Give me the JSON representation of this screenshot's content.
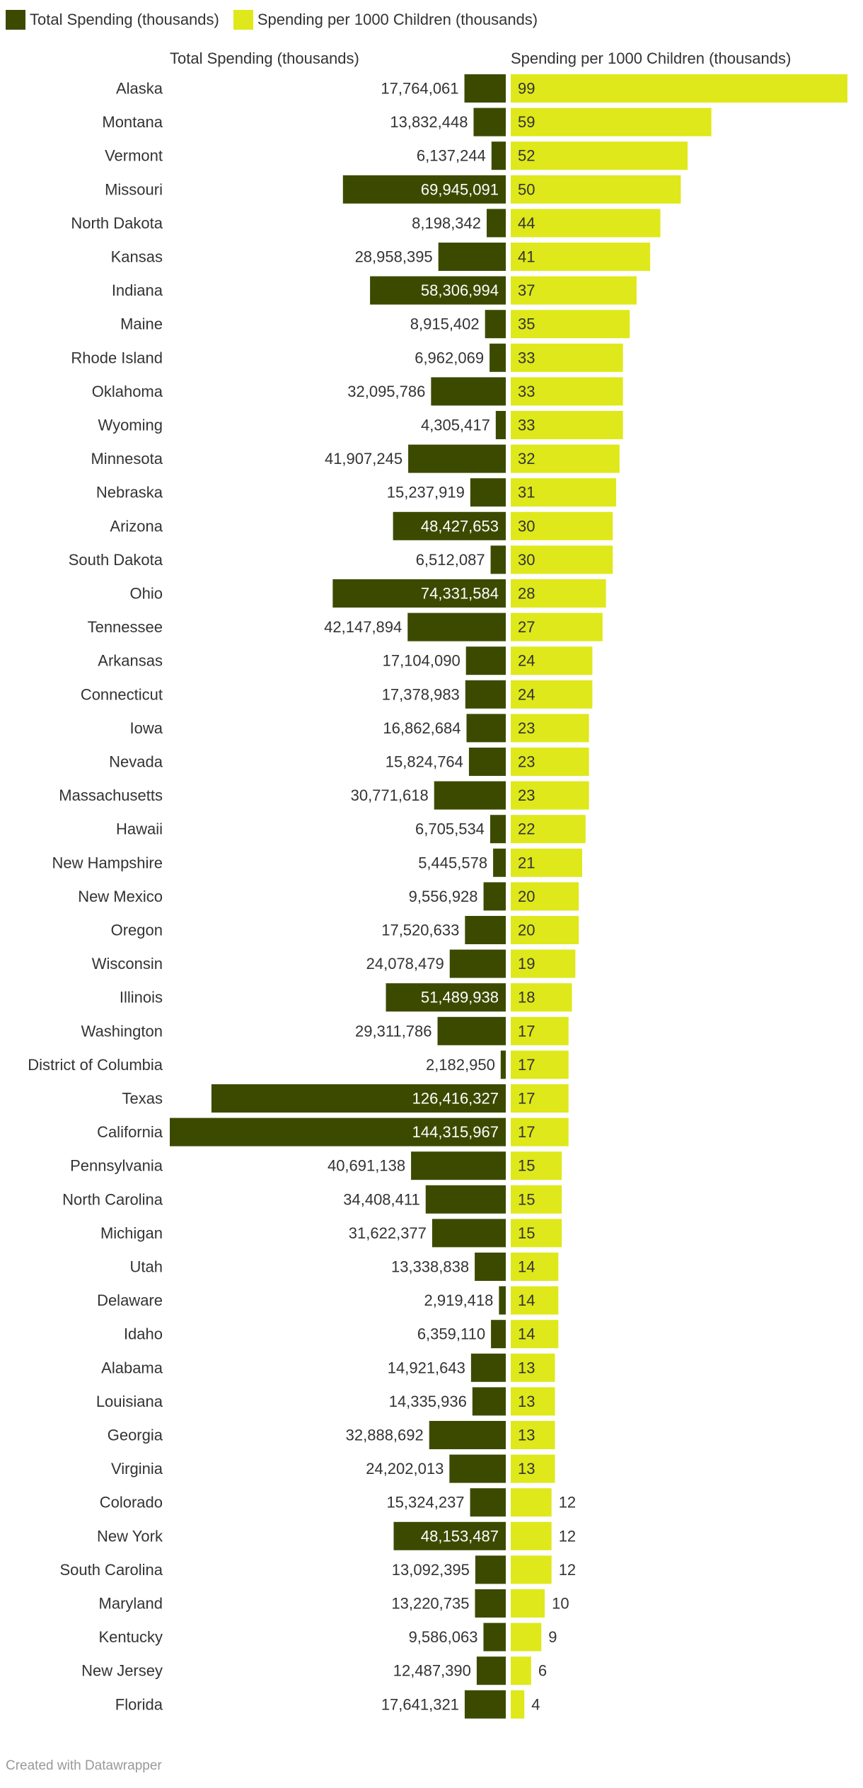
{
  "legend": [
    {
      "label": "Total Spending (thousands)",
      "color": "#3c4a00"
    },
    {
      "label": "Spending per 1000 Children (thousands)",
      "color": "#dfe81a"
    }
  ],
  "footer": "Created with Datawrapper",
  "chart_data": {
    "type": "bar",
    "orientation": "horizontal",
    "legend_position": "top-left",
    "grid": false,
    "categories": [
      "Alaska",
      "Montana",
      "Vermont",
      "Missouri",
      "North Dakota",
      "Kansas",
      "Indiana",
      "Maine",
      "Rhode Island",
      "Oklahoma",
      "Wyoming",
      "Minnesota",
      "Nebraska",
      "Arizona",
      "South Dakota",
      "Ohio",
      "Tennessee",
      "Arkansas",
      "Connecticut",
      "Iowa",
      "Nevada",
      "Massachusetts",
      "Hawaii",
      "New Hampshire",
      "New Mexico",
      "Oregon",
      "Wisconsin",
      "Illinois",
      "Washington",
      "District of Columbia",
      "Texas",
      "California",
      "Pennsylvania",
      "North Carolina",
      "Michigan",
      "Utah",
      "Delaware",
      "Idaho",
      "Alabama",
      "Louisiana",
      "Georgia",
      "Virginia",
      "Colorado",
      "New York",
      "South Carolina",
      "Maryland",
      "Kentucky",
      "New Jersey",
      "Florida"
    ],
    "series": [
      {
        "name": "Total Spending (thousands)",
        "color": "#3c4a00",
        "values": [
          17764061,
          13832448,
          6137244,
          69945091,
          8198342,
          28958395,
          58306994,
          8915402,
          6962069,
          32095786,
          4305417,
          41907245,
          15237919,
          48427653,
          6512087,
          74331584,
          42147894,
          17104090,
          17378983,
          16862684,
          15824764,
          30771618,
          6705534,
          5445578,
          9556928,
          17520633,
          24078479,
          51489938,
          29311786,
          2182950,
          126416327,
          144315967,
          40691138,
          34408411,
          31622377,
          13338838,
          2919418,
          6359110,
          14921643,
          14335936,
          32888692,
          24202013,
          15324237,
          48153487,
          13092395,
          13220735,
          9586063,
          12487390,
          17641321
        ],
        "labels": [
          "17,764,061",
          "13,832,448",
          "6,137,244",
          "69,945,091",
          "8,198,342",
          "28,958,395",
          "58,306,994",
          "8,915,402",
          "6,962,069",
          "32,095,786",
          "4,305,417",
          "41,907,245",
          "15,237,919",
          "48,427,653",
          "6,512,087",
          "74,331,584",
          "42,147,894",
          "17,104,090",
          "17,378,983",
          "16,862,684",
          "15,824,764",
          "30,771,618",
          "6,705,534",
          "5,445,578",
          "9,556,928",
          "17,520,633",
          "24,078,479",
          "51,489,938",
          "29,311,786",
          "2,182,950",
          "126,416,327",
          "144,315,967",
          "40,691,138",
          "34,408,411",
          "31,622,377",
          "13,338,838",
          "2,919,418",
          "6,359,110",
          "14,921,643",
          "14,335,936",
          "32,888,692",
          "24,202,013",
          "15,324,237",
          "48,153,487",
          "13,092,395",
          "13,220,735",
          "9,586,063",
          "12,487,390",
          "17,641,321"
        ]
      },
      {
        "name": "Spending per 1000 Children (thousands)",
        "color": "#dfe81a",
        "values": [
          99,
          59,
          52,
          50,
          44,
          41,
          37,
          35,
          33,
          33,
          33,
          32,
          31,
          30,
          30,
          28,
          27,
          24,
          24,
          23,
          23,
          23,
          22,
          21,
          20,
          20,
          19,
          18,
          17,
          17,
          17,
          17,
          15,
          15,
          15,
          14,
          14,
          14,
          13,
          13,
          13,
          13,
          12,
          12,
          12,
          10,
          9,
          6,
          4
        ],
        "labels": [
          "99",
          "59",
          "52",
          "50",
          "44",
          "41",
          "37",
          "35",
          "33",
          "33",
          "33",
          "32",
          "31",
          "30",
          "30",
          "28",
          "27",
          "24",
          "24",
          "23",
          "23",
          "23",
          "22",
          "21",
          "20",
          "20",
          "19",
          "18",
          "17",
          "17",
          "17",
          "17",
          "15",
          "15",
          "15",
          "14",
          "14",
          "14",
          "13",
          "13",
          "13",
          "13",
          "12",
          "12",
          "12",
          "10",
          "9",
          "6",
          "4"
        ]
      }
    ],
    "column_titles": [
      "Total Spending (thousands)",
      "Spending per 1000 Children (thousands)"
    ]
  }
}
